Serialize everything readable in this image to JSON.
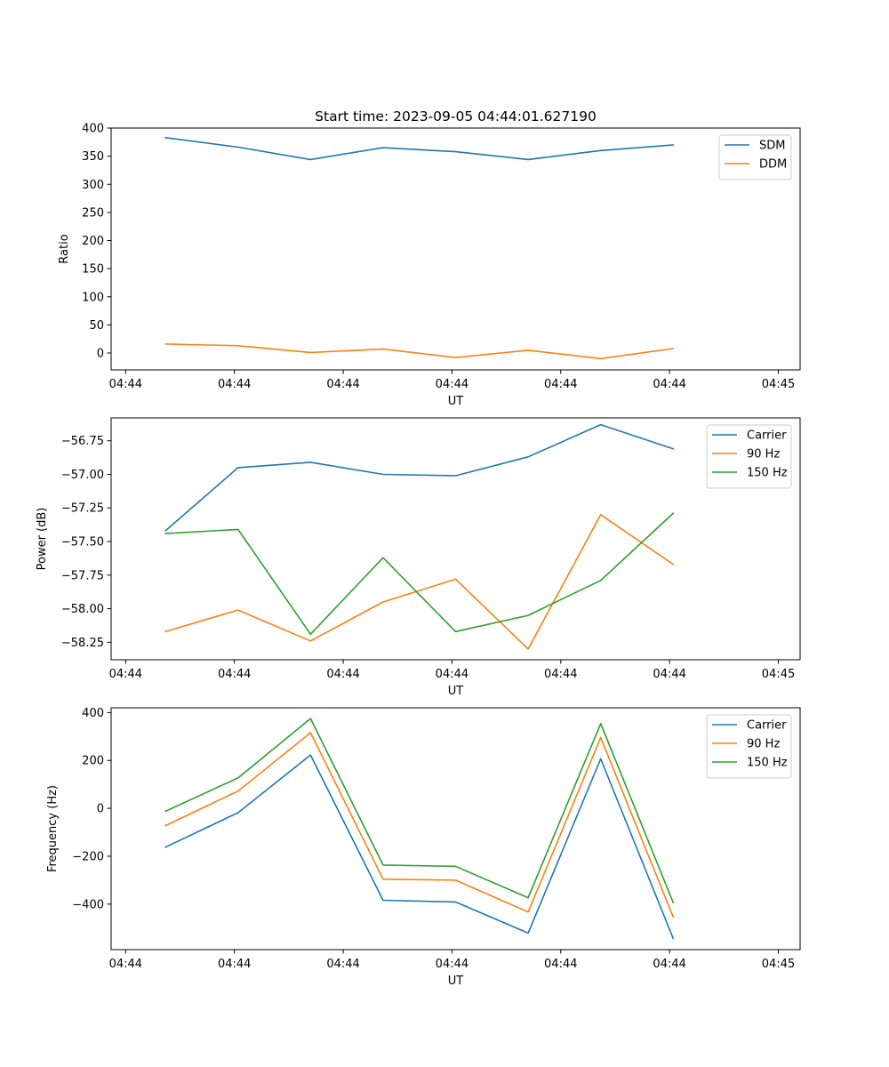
{
  "title": "Start time: 2023-09-05 04:44:01.627190",
  "chart_data": [
    {
      "type": "line",
      "name": "ratio",
      "xlabel": "UT",
      "ylabel": "Ratio",
      "xlim": [
        0,
        9.5
      ],
      "ylim": [
        -30,
        400
      ],
      "x": [
        0.75,
        1.75,
        2.75,
        3.75,
        4.75,
        5.75,
        6.75,
        7.75
      ],
      "xticks": [
        0.2,
        1.7,
        3.2,
        4.7,
        6.2,
        7.7,
        9.2
      ],
      "xtick_labels": [
        "04:44",
        "04:44",
        "04:44",
        "04:44",
        "04:44",
        "04:44",
        "04:45"
      ],
      "yticks": [
        0,
        50,
        100,
        150,
        200,
        250,
        300,
        350,
        400
      ],
      "ytick_labels": [
        "0",
        "50",
        "100",
        "150",
        "200",
        "250",
        "300",
        "350",
        "400"
      ],
      "legend_position": "top-right",
      "series": [
        {
          "name": "SDM",
          "color": "#1f77b4",
          "values": [
            383,
            366,
            344,
            365,
            358,
            344,
            360,
            370
          ]
        },
        {
          "name": "DDM",
          "color": "#ff7f0e",
          "values": [
            16,
            13,
            1,
            7,
            -8,
            5,
            -10,
            8
          ]
        }
      ]
    },
    {
      "type": "line",
      "name": "power",
      "xlabel": "UT",
      "ylabel": "Power (dB)",
      "xlim": [
        0,
        9.5
      ],
      "ylim": [
        -58.38,
        -56.58
      ],
      "x": [
        0.75,
        1.75,
        2.75,
        3.75,
        4.75,
        5.75,
        6.75,
        7.75
      ],
      "xticks": [
        0.2,
        1.7,
        3.2,
        4.7,
        6.2,
        7.7,
        9.2
      ],
      "xtick_labels": [
        "04:44",
        "04:44",
        "04:44",
        "04:44",
        "04:44",
        "04:44",
        "04:45"
      ],
      "yticks": [
        -58.25,
        -58.0,
        -57.75,
        -57.5,
        -57.25,
        -57.0,
        -56.75
      ],
      "ytick_labels": [
        "−58.25",
        "−58.00",
        "−57.75",
        "−57.50",
        "−57.25",
        "−57.00",
        "−56.75"
      ],
      "legend_position": "top-right",
      "series": [
        {
          "name": "Carrier",
          "color": "#1f77b4",
          "values": [
            -57.42,
            -56.95,
            -56.91,
            -57.0,
            -57.01,
            -56.87,
            -56.63,
            -56.81
          ]
        },
        {
          "name": "90 Hz",
          "color": "#ff7f0e",
          "values": [
            -58.17,
            -58.01,
            -58.24,
            -57.95,
            -57.78,
            -58.3,
            -57.3,
            -57.67
          ]
        },
        {
          "name": "150 Hz",
          "color": "#2ca02c",
          "values": [
            -57.44,
            -57.41,
            -58.19,
            -57.62,
            -58.17,
            -58.05,
            -57.79,
            -57.29
          ]
        }
      ]
    },
    {
      "type": "line",
      "name": "frequency",
      "xlabel": "UT",
      "ylabel": "Frequency (Hz)",
      "xlim": [
        0,
        9.5
      ],
      "ylim": [
        -590,
        420
      ],
      "x": [
        0.75,
        1.75,
        2.75,
        3.75,
        4.75,
        5.75,
        6.75,
        7.75
      ],
      "xticks": [
        0.2,
        1.7,
        3.2,
        4.7,
        6.2,
        7.7,
        9.2
      ],
      "xtick_labels": [
        "04:44",
        "04:44",
        "04:44",
        "04:44",
        "04:44",
        "04:44",
        "04:45"
      ],
      "yticks": [
        -400,
        -200,
        0,
        200,
        400
      ],
      "ytick_labels": [
        "−400",
        "−200",
        "0",
        "200",
        "400"
      ],
      "legend_position": "top-right",
      "series": [
        {
          "name": "Carrier",
          "color": "#1f77b4",
          "values": [
            -162,
            -18,
            223,
            -384,
            -391,
            -521,
            207,
            -543
          ]
        },
        {
          "name": "90 Hz",
          "color": "#ff7f0e",
          "values": [
            -72,
            72,
            316,
            -296,
            -300,
            -433,
            296,
            -453
          ]
        },
        {
          "name": "150 Hz",
          "color": "#2ca02c",
          "values": [
            -12,
            127,
            375,
            -237,
            -242,
            -373,
            354,
            -393
          ]
        }
      ]
    }
  ]
}
